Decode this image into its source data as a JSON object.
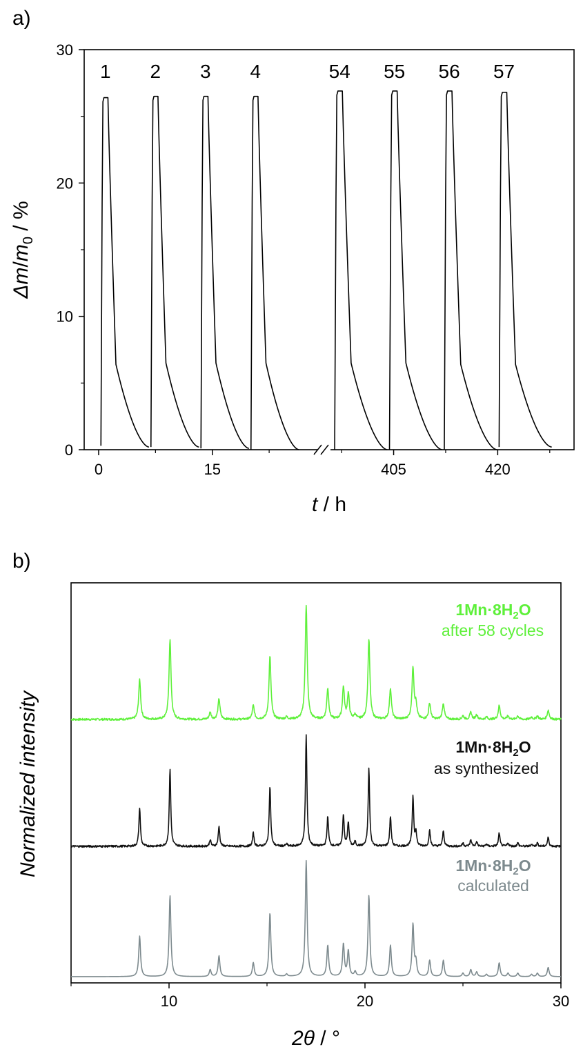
{
  "panel_a_label": "a)",
  "panel_b_label": "b)",
  "chart_data": [
    {
      "type": "line",
      "panel": "a)",
      "ylabel": "Δm/m0 / %",
      "ylabel_parts": {
        "delta": "Δ",
        "m1": "m",
        "slash": "/",
        "m2": "m",
        "sub": "0",
        "unit": " / %"
      },
      "xlabel": "t / h",
      "xlabel_parts": {
        "var": "t",
        "unit": " / h"
      },
      "ylim": [
        0,
        30
      ],
      "y_ticks": [
        0,
        10,
        20,
        30
      ],
      "x_tick_labels": [
        "0",
        "15",
        "405",
        "420"
      ],
      "axis_break": "//",
      "segments": [
        {
          "name": "left",
          "xlim": [
            -1,
            29.5
          ],
          "x_ticks": [
            0,
            15
          ],
          "x_minor": [
            7.5,
            22.5
          ],
          "cycle_period": 6.6,
          "cycle_starts": [
            0.3,
            6.9,
            13.5,
            20.1
          ]
        },
        {
          "name": "right",
          "xlim": [
            395.5,
            431
          ],
          "x_ticks": [
            405,
            420
          ],
          "x_minor": [
            397.5,
            412.5,
            427.5
          ],
          "cycle_period": 7.9,
          "cycle_starts": [
            396.5,
            404.4,
            412.3,
            420.2
          ]
        }
      ],
      "cycles": [
        {
          "label": "1",
          "peak": 26.4,
          "knee": 6.4,
          "min": 0.2
        },
        {
          "label": "2",
          "peak": 26.5,
          "knee": 6.5,
          "min": 0.2
        },
        {
          "label": "3",
          "peak": 26.5,
          "knee": 6.5,
          "min": 0.1
        },
        {
          "label": "4",
          "peak": 26.5,
          "knee": 6.5,
          "min": 0.0
        },
        {
          "label": "54",
          "peak": 26.9,
          "knee": 6.5,
          "min": 0.0
        },
        {
          "label": "55",
          "peak": 26.9,
          "knee": 6.5,
          "min": 0.0
        },
        {
          "label": "56",
          "peak": 26.9,
          "knee": 6.4,
          "min": 0.0
        },
        {
          "label": "57",
          "peak": 26.8,
          "knee": 6.4,
          "min": 0.2
        }
      ]
    },
    {
      "type": "line",
      "panel": "b)",
      "xlabel": "2θ / °",
      "xlabel_parts": {
        "two": "2",
        "theta": "θ",
        "unit": " / °"
      },
      "ylabel": "Normalized intensity",
      "xlim": [
        5,
        30
      ],
      "x_ticks": [
        10,
        20,
        30
      ],
      "x_minor": [
        5,
        15,
        25
      ],
      "peaks": [
        {
          "pos": 8.5,
          "h": 0.35
        },
        {
          "pos": 10.05,
          "h": 0.7
        },
        {
          "pos": 12.1,
          "h": 0.06
        },
        {
          "pos": 12.55,
          "h": 0.18
        },
        {
          "pos": 14.3,
          "h": 0.12
        },
        {
          "pos": 15.15,
          "h": 0.55
        },
        {
          "pos": 16.0,
          "h": 0.02
        },
        {
          "pos": 17.0,
          "h": 1.0
        },
        {
          "pos": 18.1,
          "h": 0.27
        },
        {
          "pos": 18.9,
          "h": 0.28
        },
        {
          "pos": 19.15,
          "h": 0.22
        },
        {
          "pos": 19.5,
          "h": 0.04
        },
        {
          "pos": 20.2,
          "h": 0.7
        },
        {
          "pos": 21.3,
          "h": 0.27
        },
        {
          "pos": 22.45,
          "h": 0.45
        },
        {
          "pos": 22.6,
          "h": 0.12
        },
        {
          "pos": 23.3,
          "h": 0.14
        },
        {
          "pos": 24.0,
          "h": 0.14
        },
        {
          "pos": 25.0,
          "h": 0.03
        },
        {
          "pos": 25.4,
          "h": 0.06
        },
        {
          "pos": 25.7,
          "h": 0.04
        },
        {
          "pos": 26.2,
          "h": 0.02
        },
        {
          "pos": 26.85,
          "h": 0.12
        },
        {
          "pos": 27.3,
          "h": 0.03
        },
        {
          "pos": 27.8,
          "h": 0.03
        },
        {
          "pos": 28.5,
          "h": 0.02
        },
        {
          "pos": 28.8,
          "h": 0.03
        },
        {
          "pos": 29.35,
          "h": 0.08
        }
      ],
      "series": [
        {
          "name": "1Mn·8H2O after 58 cycles",
          "legend_bold": "1Mn·8H",
          "legend_sub": "2",
          "legend_bold_tail": "O",
          "legend_sub_line": "after 58 cycles",
          "color": "#5ef03a",
          "noise": true
        },
        {
          "name": "1Mn·8H2O as synthesized",
          "legend_bold": "1Mn·8H",
          "legend_sub": "2",
          "legend_bold_tail": "O",
          "legend_sub_line": "as synthesized",
          "color": "#111111",
          "noise": true
        },
        {
          "name": "1Mn·8H2O calculated",
          "legend_bold": "1Mn·8H",
          "legend_sub": "2",
          "legend_bold_tail": "O",
          "legend_sub_line": "calculated",
          "color": "#7d8a8e",
          "noise": false
        }
      ]
    }
  ]
}
